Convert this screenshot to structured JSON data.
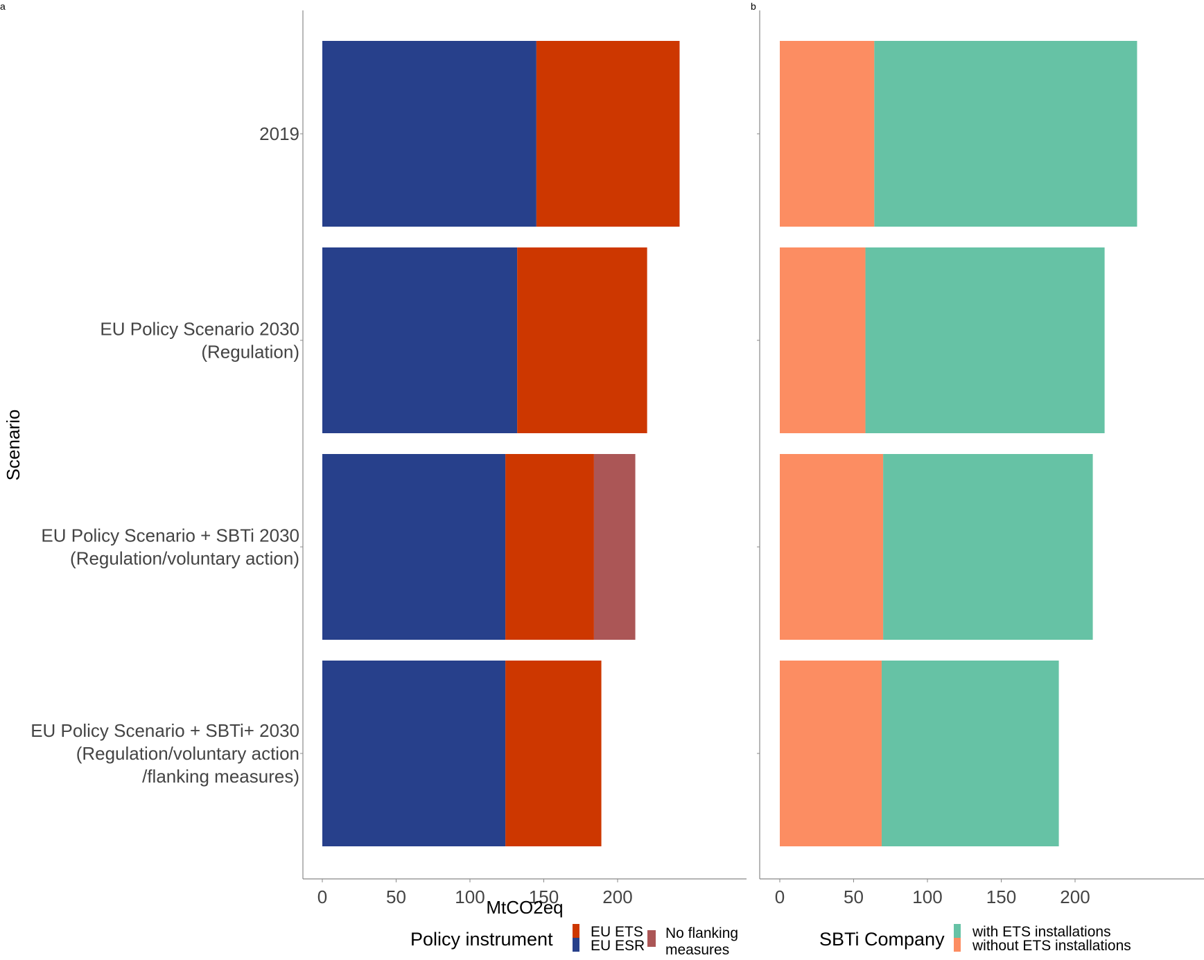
{
  "chart_data": [
    {
      "panel": "a",
      "type": "bar",
      "orientation": "horizontal",
      "stacked": true,
      "ylabel": "Scenario",
      "xlabel": "MtCO2eq",
      "xlim": [
        -6.8,
        290
      ],
      "xticks": [
        0,
        50,
        100,
        150,
        200
      ],
      "categories": [
        [
          "2019"
        ],
        [
          "EU Policy Scenario 2030",
          "(Regulation)"
        ],
        [
          "EU Policy Scenario + SBTi 2030",
          "(Regulation/voluntary action)"
        ],
        [
          "EU Policy Scenario + SBTi+ 2030",
          "(Regulation/voluntary action",
          "/flanking measures)"
        ]
      ],
      "series": [
        {
          "name": "EU ESR",
          "color": "#27408b",
          "values": [
            145,
            132,
            124,
            124
          ]
        },
        {
          "name": "EU ETS",
          "color": "#cd3700",
          "values": [
            97,
            88,
            60,
            65
          ]
        },
        {
          "name": "No flanking measures",
          "color": "#ab5656",
          "values": [
            0,
            0,
            28,
            0
          ]
        }
      ],
      "legend": {
        "title": "Policy instrument",
        "placement": "bottom",
        "entries": [
          "EU ETS",
          "EU ESR",
          "No flanking measures"
        ]
      }
    },
    {
      "panel": "b",
      "type": "bar",
      "orientation": "horizontal",
      "stacked": true,
      "xlim": [
        -6.8,
        290
      ],
      "xticks": [
        0,
        50,
        100,
        150,
        200
      ],
      "categories": [
        [
          "2019"
        ],
        [
          "EU Policy Scenario 2030",
          "(Regulation)"
        ],
        [
          "EU Policy Scenario + SBTi 2030",
          "(Regulation/voluntary action)"
        ],
        [
          "EU Policy Scenario + SBTi+ 2030",
          "(Regulation/voluntary action",
          "/flanking measures)"
        ]
      ],
      "series": [
        {
          "name": "without ETS installations",
          "color": "#fc8d62",
          "values": [
            64,
            58,
            70,
            69
          ]
        },
        {
          "name": "with ETS installations",
          "color": "#66c2a5",
          "values": [
            178,
            162,
            142,
            120
          ]
        }
      ],
      "legend": {
        "title": "SBTi Company",
        "placement": "bottom",
        "entries": [
          "with ETS installations",
          "without ETS installations"
        ]
      }
    }
  ]
}
